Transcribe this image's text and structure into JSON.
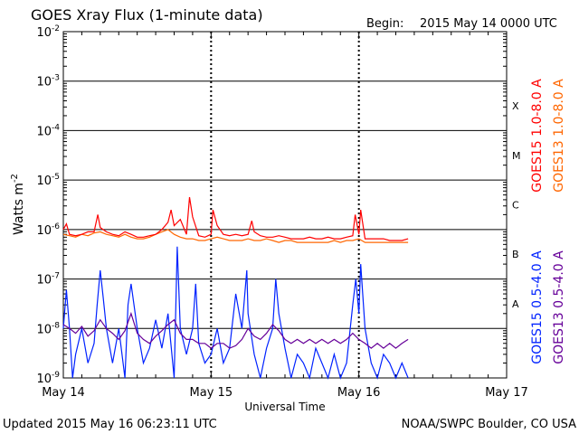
{
  "header": {
    "title": "GOES Xray Flux (1-minute data)",
    "begin_label": "Begin:",
    "begin_value": "2015 May 14 0000 UTC"
  },
  "footer": {
    "updated": "Updated 2015 May 16 06:23:11 UTC",
    "credit": "NOAA/SWPC Boulder, CO USA"
  },
  "chart_data": {
    "type": "line",
    "title": "GOES Xray Flux (1-minute data)",
    "xlabel": "Universal Time",
    "ylabel": "Watts m",
    "ylabel_superscript": "-2",
    "yscale": "log",
    "ylim": [
      1e-09,
      0.01
    ],
    "xlim": [
      0,
      72
    ],
    "x_unit": "hours since 2015 May 14 0000 UTC",
    "x_ticks": [
      {
        "x": 0,
        "label": "May 14"
      },
      {
        "x": 24,
        "label": "May 15"
      },
      {
        "x": 48,
        "label": "May 16"
      },
      {
        "x": 72,
        "label": "May 17"
      }
    ],
    "y_ticks": [
      {
        "exp": -9,
        "base": "10",
        "sup": "-9"
      },
      {
        "exp": -8,
        "base": "10",
        "sup": "-8"
      },
      {
        "exp": -7,
        "base": "10",
        "sup": "-7"
      },
      {
        "exp": -6,
        "base": "10",
        "sup": "-6"
      },
      {
        "exp": -5,
        "base": "10",
        "sup": "-5"
      },
      {
        "exp": -4,
        "base": "10",
        "sup": "-4"
      },
      {
        "exp": -3,
        "base": "10",
        "sup": "-3"
      },
      {
        "exp": -2,
        "base": "10",
        "sup": "-2"
      }
    ],
    "flare_classes": [
      {
        "label": "A",
        "exp": -7.5
      },
      {
        "label": "B",
        "exp": -6.5
      },
      {
        "label": "C",
        "exp": -5.5
      },
      {
        "label": "M",
        "exp": -4.5
      },
      {
        "label": "X",
        "exp": -3.5
      }
    ],
    "grid": {
      "horizontal_solid": true,
      "day_dotted": true
    },
    "legend_placement": "right",
    "series": [
      {
        "name": "GOES13 1.0-8.0 A",
        "color": "#ff6600",
        "x": [
          0,
          1,
          2,
          3,
          4,
          5,
          6,
          7,
          8,
          9,
          10,
          11,
          12,
          13,
          14,
          15,
          16,
          17,
          18,
          19,
          20,
          21,
          22,
          23,
          24,
          25,
          26,
          27,
          28,
          29,
          30,
          31,
          32,
          33,
          34,
          35,
          36,
          37,
          38,
          39,
          40,
          41,
          42,
          43,
          44,
          45,
          46,
          47,
          48,
          49,
          50,
          51,
          52,
          53,
          54,
          55,
          56
        ],
        "y": [
          8e-07,
          7.5e-07,
          7e-07,
          8e-07,
          7.5e-07,
          8.5e-07,
          9e-07,
          8e-07,
          7.5e-07,
          7e-07,
          8e-07,
          7e-07,
          6.5e-07,
          6.5e-07,
          7e-07,
          8e-07,
          9e-07,
          1e-06,
          8e-07,
          7e-07,
          6.5e-07,
          6.5e-07,
          6e-07,
          6e-07,
          6.5e-07,
          7e-07,
          6.5e-07,
          6e-07,
          6e-07,
          6e-07,
          6.5e-07,
          6e-07,
          6e-07,
          6.5e-07,
          6e-07,
          5.5e-07,
          6e-07,
          6e-07,
          5.5e-07,
          5.5e-07,
          5.5e-07,
          5.5e-07,
          5.5e-07,
          5.5e-07,
          6e-07,
          5.5e-07,
          6e-07,
          6e-07,
          6.5e-07,
          5.5e-07,
          5.5e-07,
          5.5e-07,
          5.5e-07,
          5.5e-07,
          5.5e-07,
          5.5e-07,
          5.5e-07
        ]
      },
      {
        "name": "GOES15 1.0-8.0 A",
        "color": "#ff0000",
        "x": [
          0,
          0.5,
          1,
          2,
          3,
          4,
          5,
          5.6,
          6,
          7,
          8,
          9,
          10,
          11,
          12,
          13,
          14,
          15,
          16,
          17,
          17.5,
          18,
          19,
          20,
          20.5,
          21,
          22,
          23,
          24,
          24.3,
          25,
          26,
          27,
          28,
          29,
          30,
          30.6,
          31,
          32,
          33,
          34,
          35,
          36,
          37,
          38,
          39,
          40,
          41,
          42,
          43,
          44,
          45,
          46,
          47,
          47.4,
          48,
          48.3,
          49,
          50,
          51,
          52,
          53,
          54,
          55,
          56
        ],
        "y": [
          1e-06,
          1.3e-06,
          8e-07,
          7.5e-07,
          8e-07,
          9e-07,
          9e-07,
          2e-06,
          1.1e-06,
          9e-07,
          8e-07,
          7.5e-07,
          9e-07,
          8e-07,
          7e-07,
          7e-07,
          7.5e-07,
          8e-07,
          1e-06,
          1.4e-06,
          2.5e-06,
          1.2e-06,
          1.6e-06,
          8e-07,
          4.5e-06,
          1.8e-06,
          7.5e-07,
          7e-07,
          8e-07,
          2.5e-06,
          1.2e-06,
          8e-07,
          7.5e-07,
          8e-07,
          7.5e-07,
          8e-07,
          1.5e-06,
          9e-07,
          7.5e-07,
          7e-07,
          7e-07,
          7.5e-07,
          7e-07,
          6.5e-07,
          6.5e-07,
          6.5e-07,
          7e-07,
          6.5e-07,
          6.5e-07,
          7e-07,
          6.5e-07,
          6.5e-07,
          7e-07,
          7.5e-07,
          2e-06,
          8e-07,
          2.5e-06,
          6.5e-07,
          6.5e-07,
          6.5e-07,
          6.5e-07,
          6e-07,
          6e-07,
          6e-07,
          6.5e-07
        ]
      },
      {
        "name": "GOES15 0.5-4.0 A",
        "color": "#0022ff",
        "x": [
          0,
          0.5,
          1,
          1.5,
          2,
          3,
          4,
          5,
          5.5,
          6,
          6.5,
          7,
          8,
          9,
          10,
          10.5,
          11,
          12,
          13,
          14,
          15,
          16,
          17,
          18,
          18.5,
          19,
          20,
          21,
          21.5,
          22,
          23,
          24,
          25,
          26,
          27,
          28,
          29,
          29.8,
          30,
          31,
          32,
          33,
          34,
          34.5,
          35,
          36,
          37,
          38,
          39,
          40,
          41,
          42,
          43,
          44,
          45,
          46,
          47,
          47.5,
          48,
          48.3,
          49,
          50,
          51,
          52,
          53,
          54,
          55,
          56
        ],
        "y": [
          1e-08,
          6e-08,
          1e-08,
          1e-09,
          3e-09,
          1e-08,
          2e-09,
          5e-09,
          3e-08,
          1.5e-07,
          4e-08,
          1e-08,
          2e-09,
          1e-08,
          1e-09,
          3e-08,
          8e-08,
          1e-08,
          2e-09,
          4e-09,
          1.5e-08,
          4e-09,
          2e-08,
          1e-09,
          4.5e-07,
          1e-08,
          3e-09,
          1e-08,
          8e-08,
          5e-09,
          2e-09,
          3e-09,
          1e-08,
          2e-09,
          4e-09,
          5e-08,
          1e-08,
          1.5e-07,
          2e-08,
          3e-09,
          1e-09,
          4e-09,
          1e-08,
          1e-07,
          2e-08,
          4e-09,
          1e-09,
          3e-09,
          2e-09,
          1e-09,
          4e-09,
          2e-09,
          1e-09,
          3e-09,
          1e-09,
          2e-09,
          3e-08,
          1e-07,
          2e-08,
          2e-07,
          1e-08,
          2e-09,
          1e-09,
          3e-09,
          2e-09,
          1e-09,
          2e-09,
          1e-09
        ]
      },
      {
        "name": "GOES13 0.5-4.0 A",
        "color": "#660099",
        "x": [
          0,
          1,
          2,
          3,
          4,
          5,
          6,
          7,
          8,
          9,
          10,
          11,
          12,
          13,
          14,
          15,
          16,
          17,
          18,
          19,
          20,
          21,
          22,
          23,
          24,
          25,
          26,
          27,
          28,
          29,
          30,
          31,
          32,
          33,
          34,
          35,
          36,
          37,
          38,
          39,
          40,
          41,
          42,
          43,
          44,
          45,
          46,
          47,
          48,
          49,
          50,
          51,
          52,
          53,
          54,
          55,
          56
        ],
        "y": [
          1.2e-08,
          1e-08,
          8e-09,
          1.1e-08,
          7e-09,
          9e-09,
          1.5e-08,
          1e-08,
          8e-09,
          6e-09,
          9e-09,
          2e-08,
          8e-09,
          6e-09,
          5e-09,
          7e-09,
          9e-09,
          1.2e-08,
          1.5e-08,
          8e-09,
          6e-09,
          6e-09,
          5e-09,
          5e-09,
          4e-09,
          5e-09,
          5e-09,
          4e-09,
          4.5e-09,
          6e-09,
          1e-08,
          7e-09,
          6e-09,
          8e-09,
          1.2e-08,
          9e-09,
          6e-09,
          5e-09,
          6e-09,
          5e-09,
          6e-09,
          5e-09,
          6e-09,
          5e-09,
          6e-09,
          5e-09,
          6e-09,
          8e-09,
          6e-09,
          5e-09,
          4e-09,
          5e-09,
          4e-09,
          5e-09,
          4e-09,
          5e-09,
          6e-09
        ]
      }
    ]
  }
}
